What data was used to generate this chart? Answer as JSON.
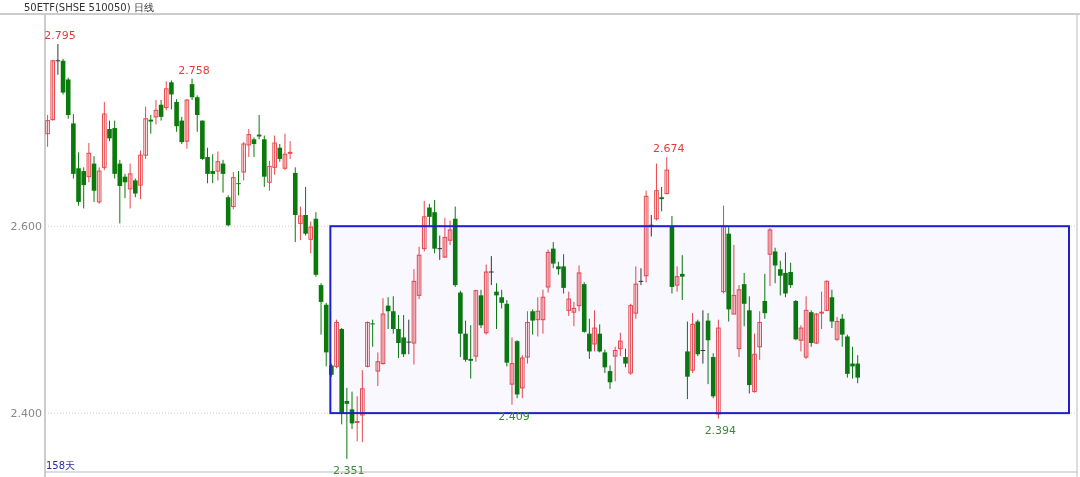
{
  "chart_data": {
    "type": "candlestick",
    "title": "50ETF(SHSE 510050)  日线",
    "categories": [
      null,
      null,
      null,
      null,
      null,
      null,
      null,
      null,
      null,
      null,
      null,
      null,
      null,
      null,
      null,
      null,
      null,
      null,
      null,
      null,
      null,
      null,
      null,
      null,
      null,
      null,
      null,
      null,
      null,
      null,
      null,
      null,
      null,
      null,
      null,
      null,
      null,
      null,
      null,
      null,
      null,
      null,
      null,
      null,
      null,
      null,
      null,
      null,
      null,
      null,
      null,
      null,
      null,
      null,
      null,
      null,
      null,
      null,
      null,
      null,
      null,
      null,
      null,
      null,
      null,
      null,
      null,
      null,
      null,
      null,
      null,
      null,
      null,
      null,
      null,
      null,
      null,
      null,
      null,
      null,
      null,
      null,
      null,
      null,
      null,
      null,
      null,
      null,
      null,
      null,
      null,
      null,
      null,
      null,
      null,
      null,
      null,
      null,
      null,
      null,
      null,
      null,
      null,
      null,
      null,
      null,
      null,
      null,
      null,
      null,
      null,
      null,
      null,
      null,
      null,
      null,
      null,
      null,
      null,
      null,
      null,
      null,
      null,
      null,
      null,
      null,
      null,
      null,
      null,
      null,
      null,
      null,
      null,
      null,
      null,
      null,
      null,
      null,
      null,
      null,
      null,
      null,
      null,
      null,
      null,
      null,
      null,
      null,
      null,
      null,
      null,
      null,
      null,
      null,
      null,
      null,
      null,
      null,
      null,
      null,
      null,
      null,
      null,
      null,
      null,
      null,
      null,
      null,
      null,
      null,
      null,
      null,
      null,
      null,
      null,
      null,
      null,
      null,
      null,
      null,
      null,
      null,
      null,
      null,
      null,
      null,
      null,
      null,
      null,
      null,
      null,
      null,
      null,
      null,
      null,
      null,
      null,
      null,
      null,
      null
    ],
    "ohlc": [
      [
        2.699,
        2.719,
        2.685,
        2.713
      ],
      [
        2.714,
        2.778,
        2.713,
        2.777
      ],
      [
        2.777,
        2.795,
        2.762,
        2.777
      ],
      [
        2.777,
        2.779,
        2.741,
        2.743
      ],
      [
        2.757,
        2.759,
        2.715,
        2.719
      ],
      [
        2.71,
        2.72,
        2.651,
        2.656
      ],
      [
        2.662,
        2.679,
        2.622,
        2.626
      ],
      [
        2.659,
        2.663,
        2.619,
        2.644
      ],
      [
        2.653,
        2.689,
        2.647,
        2.678
      ],
      [
        2.667,
        2.675,
        2.626,
        2.638
      ],
      [
        2.626,
        2.663,
        2.624,
        2.659
      ],
      [
        2.663,
        2.733,
        2.66,
        2.72
      ],
      [
        2.704,
        2.713,
        2.691,
        2.694
      ],
      [
        2.705,
        2.713,
        2.651,
        2.656
      ],
      [
        2.667,
        2.671,
        2.603,
        2.643
      ],
      [
        2.653,
        2.656,
        2.63,
        2.647
      ],
      [
        2.64,
        2.667,
        2.619,
        2.656
      ],
      [
        2.649,
        2.651,
        2.631,
        2.635
      ],
      [
        2.644,
        2.681,
        2.629,
        2.676
      ],
      [
        2.676,
        2.728,
        2.672,
        2.715
      ],
      [
        2.714,
        2.719,
        2.699,
        2.712
      ],
      [
        2.717,
        2.735,
        2.709,
        2.724
      ],
      [
        2.73,
        2.735,
        2.713,
        2.717
      ],
      [
        2.727,
        2.755,
        2.724,
        2.747
      ],
      [
        2.754,
        2.756,
        2.725,
        2.741
      ],
      [
        2.733,
        2.736,
        2.701,
        2.707
      ],
      [
        2.713,
        2.717,
        2.688,
        2.69
      ],
      [
        2.691,
        2.736,
        2.683,
        2.735
      ],
      [
        2.752,
        2.758,
        2.735,
        2.738
      ],
      [
        2.738,
        2.74,
        2.701,
        2.719
      ],
      [
        2.713,
        2.713,
        2.671,
        2.672
      ],
      [
        2.674,
        2.684,
        2.646,
        2.656
      ],
      [
        2.659,
        2.677,
        2.646,
        2.656
      ],
      [
        2.659,
        2.68,
        2.649,
        2.669
      ],
      [
        2.667,
        2.671,
        2.636,
        2.656
      ],
      [
        2.631,
        2.633,
        2.6,
        2.601
      ],
      [
        2.621,
        2.658,
        2.618,
        2.652
      ],
      [
        2.646,
        2.659,
        2.633,
        2.645
      ],
      [
        2.658,
        2.69,
        2.649,
        2.688
      ],
      [
        2.687,
        2.704,
        2.674,
        2.698
      ],
      [
        2.693,
        2.695,
        2.674,
        2.688
      ],
      [
        2.698,
        2.719,
        2.693,
        2.696
      ],
      [
        2.693,
        2.697,
        2.642,
        2.653
      ],
      [
        2.647,
        2.67,
        2.638,
        2.664
      ],
      [
        2.663,
        2.697,
        2.655,
        2.689
      ],
      [
        2.684,
        2.688,
        2.669,
        2.672
      ],
      [
        2.662,
        2.699,
        2.66,
        2.677
      ],
      [
        2.678,
        2.691,
        2.672,
        2.679
      ],
      [
        2.657,
        2.663,
        2.583,
        2.612
      ],
      [
        2.603,
        2.621,
        2.585,
        2.611
      ],
      [
        2.612,
        2.642,
        2.59,
        2.592
      ],
      [
        2.586,
        2.605,
        2.571,
        2.599
      ],
      [
        2.608,
        2.615,
        2.546,
        2.548
      ],
      [
        2.537,
        2.539,
        2.484,
        2.519
      ],
      [
        2.516,
        2.518,
        2.45,
        2.465
      ],
      [
        2.451,
        2.453,
        2.439,
        2.441
      ],
      [
        2.45,
        2.5,
        2.448,
        2.497
      ],
      [
        2.49,
        2.491,
        2.388,
        2.4
      ],
      [
        2.413,
        2.427,
        2.351,
        2.41
      ],
      [
        2.404,
        2.423,
        2.383,
        2.389
      ],
      [
        2.39,
        2.418,
        2.37,
        2.391
      ],
      [
        2.398,
        2.446,
        2.369,
        2.426
      ],
      [
        2.45,
        2.498,
        2.449,
        2.497
      ],
      [
        2.496,
        2.5,
        2.471,
        2.495
      ],
      [
        2.445,
        2.465,
        2.429,
        2.455
      ],
      [
        2.453,
        2.523,
        2.452,
        2.506
      ],
      [
        2.515,
        2.524,
        2.49,
        2.509
      ],
      [
        2.509,
        2.525,
        2.485,
        2.49
      ],
      [
        2.49,
        2.505,
        2.459,
        2.475
      ],
      [
        2.481,
        2.505,
        2.46,
        2.463
      ],
      [
        2.476,
        2.5,
        2.463,
        2.476
      ],
      [
        2.475,
        2.554,
        2.452,
        2.541
      ],
      [
        2.526,
        2.578,
        2.522,
        2.569
      ],
      [
        2.576,
        2.627,
        2.573,
        2.61
      ],
      [
        2.62,
        2.624,
        2.599,
        2.61
      ],
      [
        2.615,
        2.628,
        2.571,
        2.576
      ],
      [
        2.576,
        2.59,
        2.564,
        2.576
      ],
      [
        2.567,
        2.609,
        2.566,
        2.588
      ],
      [
        2.585,
        2.606,
        2.58,
        2.596
      ],
      [
        2.608,
        2.621,
        2.535,
        2.537
      ],
      [
        2.529,
        2.531,
        2.46,
        2.485
      ],
      [
        2.485,
        2.499,
        2.455,
        2.457
      ],
      [
        2.458,
        2.494,
        2.437,
        2.456
      ],
      [
        2.461,
        2.532,
        2.455,
        2.531
      ],
      [
        2.526,
        2.532,
        2.491,
        2.494
      ],
      [
        2.486,
        2.559,
        2.484,
        2.551
      ],
      [
        2.551,
        2.568,
        2.537,
        2.551
      ],
      [
        2.53,
        2.539,
        2.49,
        2.526
      ],
      [
        2.524,
        2.532,
        2.512,
        2.518
      ],
      [
        2.517,
        2.521,
        2.45,
        2.454
      ],
      [
        2.431,
        2.481,
        2.409,
        2.453
      ],
      [
        2.477,
        2.478,
        2.416,
        2.42
      ],
      [
        2.427,
        2.462,
        2.416,
        2.459
      ],
      [
        2.46,
        2.509,
        2.453,
        2.497
      ],
      [
        2.509,
        2.511,
        2.484,
        2.499
      ],
      [
        2.5,
        2.524,
        2.482,
        2.509
      ],
      [
        2.5,
        2.532,
        2.485,
        2.524
      ],
      [
        2.535,
        2.575,
        2.529,
        2.572
      ],
      [
        2.576,
        2.583,
        2.555,
        2.56
      ],
      [
        2.557,
        2.562,
        2.548,
        2.554
      ],
      [
        2.557,
        2.57,
        2.528,
        2.534
      ],
      [
        2.51,
        2.53,
        2.504,
        2.522
      ],
      [
        2.508,
        2.519,
        2.493,
        2.512
      ],
      [
        2.515,
        2.558,
        2.509,
        2.55
      ],
      [
        2.538,
        2.54,
        2.486,
        2.487
      ],
      [
        2.485,
        2.501,
        2.458,
        2.466
      ],
      [
        2.474,
        2.51,
        2.466,
        2.491
      ],
      [
        2.485,
        2.495,
        2.465,
        2.466
      ],
      [
        2.465,
        2.468,
        2.443,
        2.449
      ],
      [
        2.445,
        2.451,
        2.426,
        2.433
      ],
      [
        2.461,
        2.471,
        2.434,
        2.467
      ],
      [
        2.469,
        2.486,
        2.461,
        2.477
      ],
      [
        2.46,
        2.469,
        2.449,
        2.453
      ],
      [
        2.443,
        2.517,
        2.441,
        2.515
      ],
      [
        2.507,
        2.557,
        2.501,
        2.538
      ],
      [
        2.541,
        2.555,
        2.537,
        2.541
      ],
      [
        2.547,
        2.638,
        2.54,
        2.632
      ],
      [
        2.601,
        2.612,
        2.589,
        2.601
      ],
      [
        2.608,
        2.667,
        2.606,
        2.638
      ],
      [
        2.631,
        2.642,
        2.616,
        2.629
      ],
      [
        2.635,
        2.674,
        2.634,
        2.66
      ],
      [
        2.6,
        2.611,
        2.528,
        2.535
      ],
      [
        2.537,
        2.557,
        2.53,
        2.546
      ],
      [
        2.549,
        2.569,
        2.521,
        2.546
      ],
      [
        2.466,
        2.498,
        2.415,
        2.439
      ],
      [
        2.446,
        2.507,
        2.443,
        2.495
      ],
      [
        2.498,
        2.5,
        2.461,
        2.463
      ],
      [
        2.467,
        2.51,
        2.453,
        2.467
      ],
      [
        2.499,
        2.507,
        2.431,
        2.478
      ],
      [
        2.46,
        2.464,
        2.416,
        2.418
      ],
      [
        2.399,
        2.5,
        2.394,
        2.491
      ],
      [
        2.53,
        2.622,
        2.528,
        2.6
      ],
      [
        2.592,
        2.599,
        2.498,
        2.511
      ],
      [
        2.506,
        2.58,
        2.506,
        2.526
      ],
      [
        2.469,
        2.537,
        2.46,
        2.532
      ],
      [
        2.538,
        2.55,
        2.493,
        2.517
      ],
      [
        2.51,
        2.525,
        2.421,
        2.43
      ],
      [
        2.423,
        2.485,
        2.422,
        2.463
      ],
      [
        2.471,
        2.509,
        2.457,
        2.497
      ],
      [
        2.52,
        2.549,
        2.501,
        2.507
      ],
      [
        2.57,
        2.598,
        2.536,
        2.596
      ],
      [
        2.573,
        2.577,
        2.539,
        2.558
      ],
      [
        2.554,
        2.563,
        2.526,
        2.547
      ],
      [
        2.55,
        2.572,
        2.524,
        2.528
      ],
      [
        2.551,
        2.561,
        2.534,
        2.537
      ],
      [
        2.52,
        2.521,
        2.478,
        2.479
      ],
      [
        2.478,
        2.494,
        2.466,
        2.491
      ],
      [
        2.46,
        2.525,
        2.458,
        2.51
      ],
      [
        2.508,
        2.51,
        2.471,
        2.475
      ],
      [
        2.475,
        2.507,
        2.474,
        2.506
      ],
      [
        2.507,
        2.53,
        2.49,
        2.508
      ],
      [
        2.51,
        2.542,
        2.509,
        2.541
      ],
      [
        2.524,
        2.532,
        2.491,
        2.498
      ],
      [
        2.479,
        2.503,
        2.477,
        2.498
      ],
      [
        2.501,
        2.506,
        2.471,
        2.484
      ],
      [
        2.482,
        2.484,
        2.438,
        2.442
      ],
      [
        2.453,
        2.471,
        2.437,
        2.45
      ],
      [
        2.453,
        2.462,
        2.432,
        2.438
      ],
      null,
      null,
      null,
      null,
      null,
      null,
      null,
      null,
      null,
      null,
      null,
      null,
      null,
      null,
      null,
      null,
      null,
      null,
      null,
      null,
      null,
      null,
      null,
      null,
      null,
      null,
      null,
      null,
      null,
      null,
      null,
      null,
      null,
      null,
      null,
      null,
      null,
      null,
      null,
      null,
      null,
      null
    ],
    "ylim": [
      2.337,
      2.826
    ],
    "yticks": [
      {
        "value": 2.4,
        "label": "2.400"
      },
      {
        "value": 2.6,
        "label": "2.600"
      }
    ],
    "grid": "y",
    "bands": [
      {
        "axis": "y",
        "from": 2.4,
        "to": 2.6,
        "color": "#1f1fd0"
      }
    ],
    "annotations": [
      {
        "text": "2.795",
        "y": 2.795
      },
      {
        "text": "2.758",
        "y": 2.758
      },
      {
        "text": "2.674",
        "y": 2.674
      },
      {
        "text": "2.351",
        "y": 2.351
      },
      {
        "text": "2.409",
        "y": 2.409
      },
      {
        "text": "2.394",
        "y": 2.394
      },
      "158天"
    ]
  }
}
